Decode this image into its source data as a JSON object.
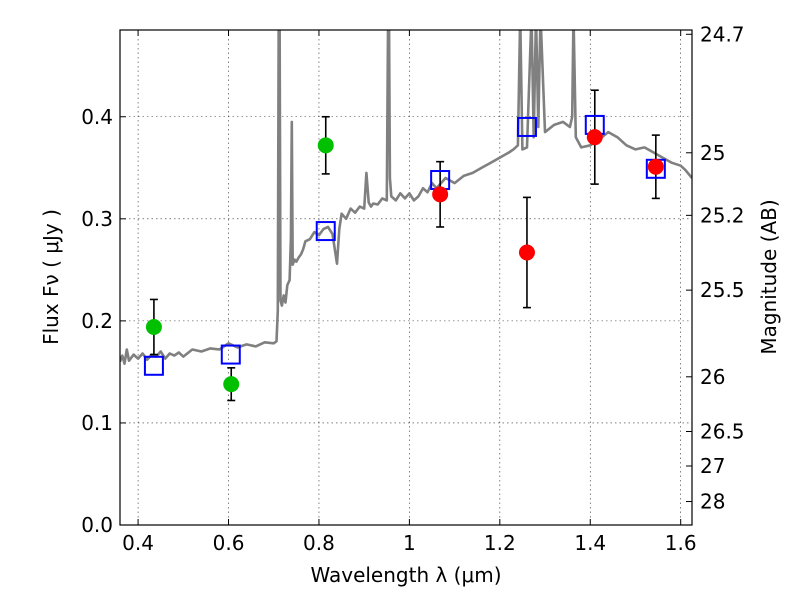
{
  "chart_data": {
    "type": "scatter",
    "title": "",
    "xlabel": "Wavelength  λ (μm)",
    "ylabel": "Flux  Fν  ( μJy )",
    "ylabel_right": "Magnitude (AB)",
    "xlim": [
      0.36,
      1.625
    ],
    "ylim": [
      0.0,
      0.485
    ],
    "grid": true,
    "x_ticks": [
      0.4,
      0.6,
      0.8,
      1.0,
      1.2,
      1.4,
      1.6
    ],
    "x_tick_labels": [
      "0.4",
      "0.6",
      "0.8",
      "1",
      "1.2",
      "1.4",
      "1.6"
    ],
    "y_ticks": [
      0.0,
      0.1,
      0.2,
      0.3,
      0.4
    ],
    "y_tick_labels": [
      "0.0",
      "0.1",
      "0.2",
      "0.3",
      "0.4"
    ],
    "right_ticks": [
      {
        "label": "24.7",
        "flux": 0.4808
      },
      {
        "label": "25",
        "flux": 0.3647
      },
      {
        "label": "25.2",
        "flux": 0.3034
      },
      {
        "label": "25.5",
        "flux": 0.2301
      },
      {
        "label": "26",
        "flux": 0.1452
      },
      {
        "label": "26.5",
        "flux": 0.0916
      },
      {
        "label": "27",
        "flux": 0.0578
      },
      {
        "label": "28",
        "flux": 0.023
      }
    ],
    "series": [
      {
        "name": "model spectrum",
        "kind": "line",
        "color": "#808080",
        "x": [
          0.36,
          0.365,
          0.37,
          0.375,
          0.38,
          0.39,
          0.4,
          0.41,
          0.42,
          0.43,
          0.44,
          0.45,
          0.46,
          0.47,
          0.48,
          0.49,
          0.5,
          0.52,
          0.54,
          0.56,
          0.58,
          0.6,
          0.62,
          0.64,
          0.66,
          0.68,
          0.7,
          0.706,
          0.709,
          0.711,
          0.713,
          0.715,
          0.718,
          0.722,
          0.726,
          0.73,
          0.735,
          0.738,
          0.74,
          0.742,
          0.746,
          0.75,
          0.755,
          0.76,
          0.765,
          0.77,
          0.78,
          0.79,
          0.8,
          0.81,
          0.82,
          0.83,
          0.84,
          0.845,
          0.85,
          0.86,
          0.87,
          0.88,
          0.89,
          0.9,
          0.905,
          0.91,
          0.915,
          0.92,
          0.93,
          0.94,
          0.95,
          0.953,
          0.955,
          0.957,
          0.96,
          0.97,
          0.98,
          0.99,
          1.0,
          1.01,
          1.02,
          1.03,
          1.04,
          1.05,
          1.06,
          1.08,
          1.1,
          1.12,
          1.14,
          1.16,
          1.18,
          1.2,
          1.22,
          1.23,
          1.24,
          1.245,
          1.25,
          1.26,
          1.27,
          1.275,
          1.28,
          1.285,
          1.29,
          1.3,
          1.32,
          1.34,
          1.355,
          1.36,
          1.363,
          1.368,
          1.38,
          1.4,
          1.42,
          1.44,
          1.46,
          1.48,
          1.5,
          1.52,
          1.54,
          1.56,
          1.58,
          1.6,
          1.61,
          1.625
        ],
        "y": [
          0.16,
          0.166,
          0.158,
          0.172,
          0.161,
          0.167,
          0.163,
          0.168,
          0.162,
          0.167,
          0.165,
          0.17,
          0.163,
          0.168,
          0.166,
          0.169,
          0.165,
          0.172,
          0.17,
          0.173,
          0.172,
          0.178,
          0.174,
          0.177,
          0.175,
          0.179,
          0.178,
          0.18,
          0.21,
          0.5,
          0.5,
          0.22,
          0.215,
          0.225,
          0.218,
          0.235,
          0.24,
          0.28,
          0.395,
          0.255,
          0.26,
          0.258,
          0.262,
          0.265,
          0.27,
          0.278,
          0.28,
          0.287,
          0.284,
          0.29,
          0.292,
          0.285,
          0.256,
          0.29,
          0.305,
          0.3,
          0.31,
          0.306,
          0.312,
          0.31,
          0.345,
          0.316,
          0.312,
          0.315,
          0.314,
          0.32,
          0.318,
          0.5,
          0.5,
          0.34,
          0.322,
          0.318,
          0.325,
          0.32,
          0.325,
          0.318,
          0.322,
          0.33,
          0.326,
          0.335,
          0.33,
          0.34,
          0.335,
          0.342,
          0.345,
          0.35,
          0.355,
          0.36,
          0.365,
          0.368,
          0.372,
          0.5,
          0.368,
          0.37,
          0.5,
          0.38,
          0.5,
          0.39,
          0.5,
          0.385,
          0.392,
          0.395,
          0.39,
          0.4,
          0.5,
          0.38,
          0.37,
          0.372,
          0.378,
          0.385,
          0.38,
          0.372,
          0.368,
          0.37,
          0.365,
          0.36,
          0.355,
          0.352,
          0.348,
          0.34
        ]
      },
      {
        "name": "model fluxes",
        "kind": "open-square",
        "color": "#0000ff",
        "x": [
          0.435,
          0.605,
          0.815,
          1.068,
          1.26,
          1.41,
          1.545
        ],
        "y": [
          0.156,
          0.167,
          0.288,
          0.338,
          0.39,
          0.392,
          0.349
        ]
      },
      {
        "name": "green points",
        "kind": "filled-circle",
        "color": "#00c000",
        "x": [
          0.435,
          0.606,
          0.815
        ],
        "y": [
          0.194,
          0.138,
          0.372
        ],
        "yerr": [
          0.027,
          0.016,
          0.028
        ]
      },
      {
        "name": "red points",
        "kind": "filled-circle",
        "color": "#ff0000",
        "x": [
          1.068,
          1.26,
          1.41,
          1.545
        ],
        "y": [
          0.324,
          0.267,
          0.38,
          0.351
        ],
        "yerr": [
          0.032,
          0.054,
          0.046,
          0.031
        ]
      }
    ]
  }
}
